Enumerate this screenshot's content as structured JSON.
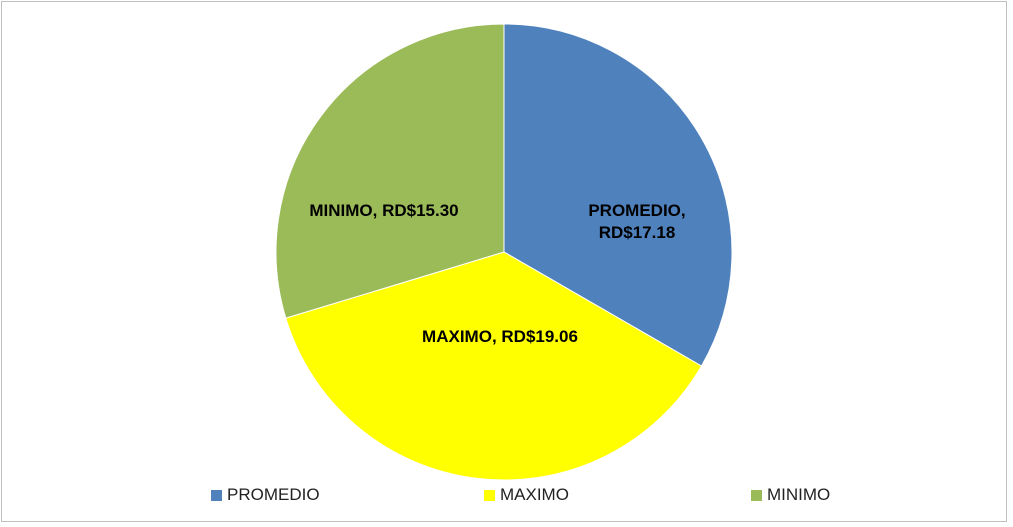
{
  "chart_data": {
    "type": "pie",
    "categories": [
      "PROMEDIO",
      "MAXIMO",
      "MINIMO"
    ],
    "values": [
      17.18,
      19.06,
      15.3
    ],
    "value_labels": [
      "PROMEDIO, RD$17.18",
      "MAXIMO, RD$19.06",
      "MINIMO, RD$15.30"
    ],
    "colors": [
      "#4f81bd",
      "#ffff00",
      "#9bbb59"
    ],
    "legend": "bottom"
  }
}
